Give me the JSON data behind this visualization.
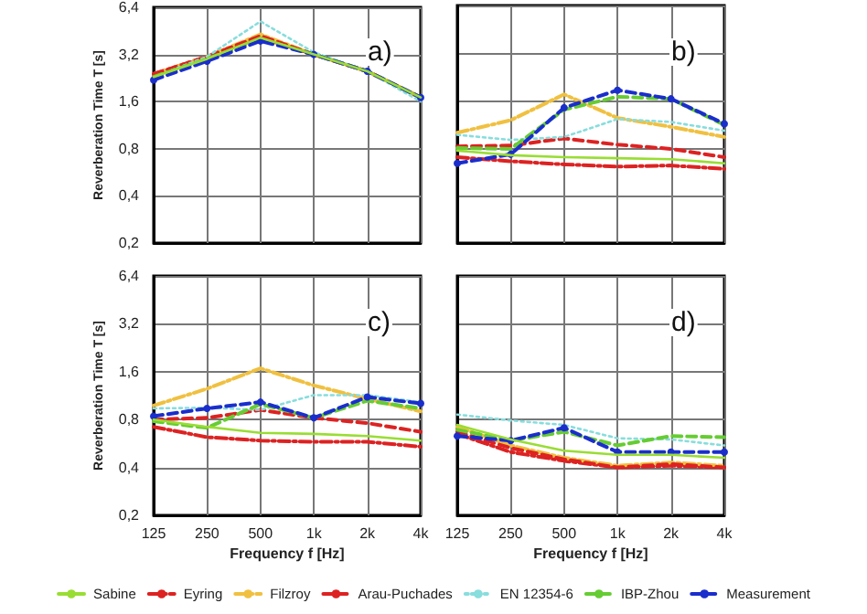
{
  "chart_data": [
    {
      "type": "line",
      "ylabel": "Reverberation Time T [s]",
      "annotations": [
        "a)"
      ],
      "categories": [
        "125",
        "250",
        "500",
        "1k",
        "2k",
        "4k"
      ],
      "log": true,
      "ylim": [
        0.2,
        6.4
      ],
      "yticks": [
        {
          "value": 0.2,
          "label": "0,2"
        },
        {
          "value": 0.4,
          "label": "0,4"
        },
        {
          "value": 0.8,
          "label": "0,8"
        },
        {
          "value": 1.6,
          "label": "1,6"
        },
        {
          "value": 3.2,
          "label": "3,2"
        },
        {
          "value": 6.4,
          "label": "6,4"
        }
      ],
      "grid": true,
      "tick_labels": "y",
      "legend": "bottom",
      "marker": "none",
      "series": [
        {
          "name": "Sabine",
          "color": "#99dd33",
          "line_style": "solid",
          "values": [
            2.3,
            3.0,
            4.1,
            3.2,
            2.5,
            1.7
          ]
        },
        {
          "name": "Eyring",
          "color": "#dd2222",
          "line_style": "dashdot",
          "values": [
            2.4,
            3.1,
            4.1,
            3.2,
            2.5,
            1.7
          ]
        },
        {
          "name": "Filzroy",
          "color": "#f0c040",
          "line_style": "dashdot",
          "values": [
            2.4,
            3.1,
            4.3,
            3.2,
            2.5,
            1.7
          ]
        },
        {
          "name": "Arau-Puchades",
          "color": "#dd2222",
          "line_style": "dashed",
          "values": [
            2.4,
            3.1,
            4.2,
            3.2,
            2.5,
            1.7
          ]
        },
        {
          "name": "EN 12354-6",
          "color": "#88dddd",
          "line_style": "dotted",
          "values": [
            2.3,
            3.1,
            5.2,
            3.3,
            2.5,
            1.6
          ]
        },
        {
          "name": "IBP-Zhou",
          "color": "#66cc33",
          "line_style": "dashed",
          "values": [
            2.3,
            3.0,
            4.0,
            3.2,
            2.5,
            1.7
          ]
        },
        {
          "name": "Measurement",
          "color": "#1a2ecc",
          "line_style": "dashed",
          "marker": "circle",
          "values": [
            2.2,
            2.9,
            3.9,
            3.2,
            2.5,
            1.7
          ]
        }
      ]
    },
    {
      "type": "line",
      "annotations": [
        "b)"
      ],
      "categories": [
        "125",
        "250",
        "500",
        "1k",
        "2k",
        "4k"
      ],
      "log": true,
      "ylim": [
        0.2,
        6.4
      ],
      "yticks": [
        {
          "value": 0.2,
          "label": null
        },
        {
          "value": 0.4,
          "label": null
        },
        {
          "value": 0.8,
          "label": null
        },
        {
          "value": 1.6,
          "label": null
        },
        {
          "value": 3.2,
          "label": null
        },
        {
          "value": 6.4,
          "label": null
        }
      ],
      "grid": true,
      "tick_labels": false,
      "marker": "none",
      "series": [
        {
          "name": "Sabine",
          "color": "#99dd33",
          "line_style": "solid",
          "values": [
            0.77,
            0.72,
            0.7,
            0.69,
            0.68,
            0.64
          ]
        },
        {
          "name": "Eyring",
          "color": "#dd2222",
          "line_style": "dashdot",
          "values": [
            0.7,
            0.66,
            0.63,
            0.61,
            0.62,
            0.59
          ]
        },
        {
          "name": "Filzroy",
          "color": "#f0c040",
          "line_style": "dashdot",
          "values": [
            1.0,
            1.2,
            1.75,
            1.24,
            1.09,
            0.94
          ]
        },
        {
          "name": "Arau-Puchades",
          "color": "#dd2222",
          "line_style": "dashed",
          "values": [
            0.82,
            0.83,
            0.92,
            0.84,
            0.79,
            0.7
          ]
        },
        {
          "name": "EN 12354-6",
          "color": "#88dddd",
          "line_style": "dotted",
          "values": [
            0.97,
            0.9,
            0.94,
            1.22,
            1.17,
            1.03
          ]
        },
        {
          "name": "IBP-Zhou",
          "color": "#66cc33",
          "line_style": "dashed",
          "values": [
            0.8,
            0.79,
            1.4,
            1.69,
            1.64,
            1.12
          ]
        },
        {
          "name": "Measurement",
          "color": "#1a2ecc",
          "line_style": "dashed",
          "marker": "circle",
          "values": [
            0.64,
            0.73,
            1.44,
            1.86,
            1.64,
            1.14
          ]
        }
      ]
    },
    {
      "type": "line",
      "ylabel": "Reverberation Time T [s]",
      "xlabel": "Frequency f [Hz]",
      "annotations": [
        "c)"
      ],
      "categories": [
        "125",
        "250",
        "500",
        "1k",
        "2k",
        "4k"
      ],
      "log": true,
      "ylim": [
        0.2,
        6.4
      ],
      "yticks": [
        {
          "value": 0.2,
          "label": "0,2"
        },
        {
          "value": 0.4,
          "label": "0,4"
        },
        {
          "value": 0.8,
          "label": "0,8"
        },
        {
          "value": 1.6,
          "label": "1,6"
        },
        {
          "value": 3.2,
          "label": "3,2"
        },
        {
          "value": 6.4,
          "label": "6,4"
        }
      ],
      "grid": true,
      "marker": "none",
      "series": [
        {
          "name": "Sabine",
          "color": "#99dd33",
          "line_style": "solid",
          "values": [
            0.8,
            0.72,
            0.66,
            0.65,
            0.63,
            0.59
          ]
        },
        {
          "name": "Eyring",
          "color": "#dd2222",
          "line_style": "dashdot",
          "values": [
            0.72,
            0.62,
            0.59,
            0.58,
            0.58,
            0.54
          ]
        },
        {
          "name": "Filzroy",
          "color": "#f0c040",
          "line_style": "dashdot",
          "values": [
            0.98,
            1.25,
            1.68,
            1.31,
            1.08,
            0.9
          ]
        },
        {
          "name": "Arau-Puchades",
          "color": "#dd2222",
          "line_style": "dashed",
          "values": [
            0.8,
            0.82,
            0.92,
            0.82,
            0.76,
            0.67
          ]
        },
        {
          "name": "EN 12354-6",
          "color": "#88dddd",
          "line_style": "dotted",
          "values": [
            0.94,
            0.95,
            0.92,
            1.14,
            1.14,
            1.03
          ]
        },
        {
          "name": "IBP-Zhou",
          "color": "#66cc33",
          "line_style": "dashed",
          "values": [
            0.78,
            0.71,
            1.0,
            0.82,
            1.05,
            0.94
          ]
        },
        {
          "name": "Measurement",
          "color": "#1a2ecc",
          "line_style": "dashed",
          "marker": "circle",
          "values": [
            0.84,
            0.94,
            1.03,
            0.82,
            1.11,
            1.01
          ]
        }
      ]
    },
    {
      "type": "line",
      "xlabel": "Frequency f [Hz]",
      "annotations": [
        "d)"
      ],
      "categories": [
        "125",
        "250",
        "500",
        "1k",
        "2k",
        "4k"
      ],
      "log": true,
      "ylim": [
        0.2,
        6.4
      ],
      "yticks": [
        {
          "value": 0.2,
          "label": null
        },
        {
          "value": 0.4,
          "label": null
        },
        {
          "value": 0.8,
          "label": null
        },
        {
          "value": 1.6,
          "label": null
        },
        {
          "value": 3.2,
          "label": null
        },
        {
          "value": 6.4,
          "label": null
        }
      ],
      "grid": true,
      "tick_labels": "x",
      "marker": "none",
      "series": [
        {
          "name": "Sabine",
          "color": "#99dd33",
          "line_style": "solid",
          "values": [
            0.74,
            0.6,
            0.51,
            0.48,
            0.48,
            0.46
          ]
        },
        {
          "name": "Eyring",
          "color": "#dd2222",
          "line_style": "dashdot",
          "values": [
            0.65,
            0.5,
            0.44,
            0.4,
            0.41,
            0.4
          ]
        },
        {
          "name": "Filzroy",
          "color": "#f0c040",
          "line_style": "dashdot",
          "values": [
            0.72,
            0.55,
            0.46,
            0.41,
            0.43,
            0.41
          ]
        },
        {
          "name": "Arau-Puchades",
          "color": "#dd2222",
          "line_style": "dashed",
          "values": [
            0.67,
            0.53,
            0.45,
            0.4,
            0.42,
            0.4
          ]
        },
        {
          "name": "EN 12354-6",
          "color": "#88dddd",
          "line_style": "dotted",
          "values": [
            0.86,
            0.79,
            0.74,
            0.61,
            0.6,
            0.55
          ]
        },
        {
          "name": "IBP-Zhou",
          "color": "#66cc33",
          "line_style": "dashed",
          "values": [
            0.69,
            0.59,
            0.67,
            0.55,
            0.63,
            0.62
          ]
        },
        {
          "name": "Measurement",
          "color": "#1a2ecc",
          "line_style": "dashed",
          "marker": "circle",
          "values": [
            0.63,
            0.59,
            0.71,
            0.5,
            0.5,
            0.5
          ]
        }
      ]
    }
  ]
}
